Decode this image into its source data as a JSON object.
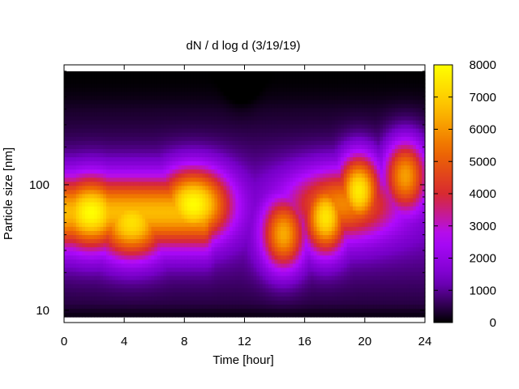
{
  "chart_data": {
    "type": "heatmap",
    "title": "dN / d log d (3/19/19)",
    "xlabel": "Time [hour]",
    "ylabel": "Particle size [nm]",
    "xlim": [
      0,
      24
    ],
    "ylim": [
      8,
      900
    ],
    "yscale": "log",
    "x_ticks": [
      0,
      4,
      8,
      12,
      16,
      20,
      24
    ],
    "y_ticks": [
      10,
      100
    ],
    "colorbar": {
      "range": [
        0,
        8000
      ],
      "ticks": [
        0,
        1000,
        2000,
        3000,
        4000,
        5000,
        6000,
        7000,
        8000
      ],
      "colormap": "gnuplot",
      "stops": [
        "#000000",
        "#7600c7",
        "#b10aff",
        "#d82a30",
        "#ee6a00",
        "#fdbf00",
        "#ffff00"
      ]
    },
    "modes": [
      {
        "t": 1.8,
        "d": 60,
        "peak": 6800
      },
      {
        "t": 4.5,
        "d": 50,
        "peak": 6200
      },
      {
        "t": 8.6,
        "d": 70,
        "peak": 6800
      },
      {
        "t": 14.6,
        "d": 40,
        "peak": 5200
      },
      {
        "t": 17.4,
        "d": 55,
        "peak": 6300
      },
      {
        "t": 19.6,
        "d": 90,
        "peak": 6500
      },
      {
        "t": 22.7,
        "d": 120,
        "peak": 5200
      }
    ]
  }
}
